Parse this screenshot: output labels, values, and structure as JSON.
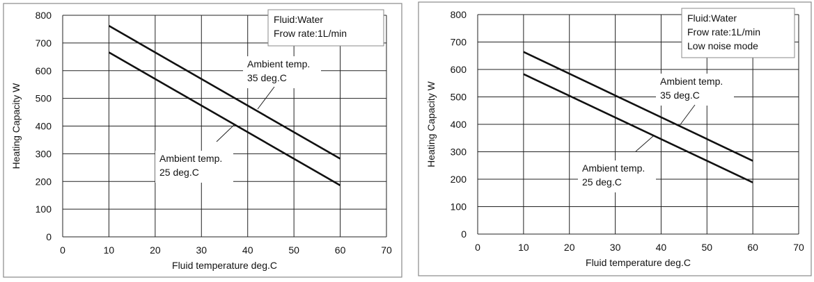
{
  "chart_data": [
    {
      "type": "line",
      "xlabel": "Fluid temperature deg.C",
      "ylabel": "Heating Capacity W",
      "xlim": [
        0,
        70
      ],
      "ylim": [
        0,
        800
      ],
      "xticks": [
        "0",
        "10",
        "20",
        "30",
        "40",
        "50",
        "60",
        "70"
      ],
      "yticks": [
        "0",
        "100",
        "200",
        "300",
        "400",
        "500",
        "600",
        "700",
        "800"
      ],
      "grid": true,
      "info_box": [
        "Fluid:Water",
        "Frow rate:1L/min"
      ],
      "series": [
        {
          "name": "Ambient temp. 35 deg.C",
          "label_lines": [
            "Ambient temp.",
            "35 deg.C"
          ],
          "x": [
            10,
            60
          ],
          "y": [
            762,
            282
          ]
        },
        {
          "name": "Ambient temp. 25 deg.C",
          "label_lines": [
            "Ambient temp.",
            "25 deg.C"
          ],
          "x": [
            10,
            60
          ],
          "y": [
            666,
            186
          ]
        }
      ],
      "color": "#111111"
    },
    {
      "type": "line",
      "xlabel": "Fluid temperature deg.C",
      "ylabel": "Heating Capacity W",
      "xlim": [
        0,
        70
      ],
      "ylim": [
        0,
        800
      ],
      "xticks": [
        "0",
        "10",
        "20",
        "30",
        "40",
        "50",
        "60",
        "70"
      ],
      "yticks": [
        "0",
        "100",
        "200",
        "300",
        "400",
        "500",
        "600",
        "700",
        "800"
      ],
      "grid": true,
      "info_box": [
        "Fluid:Water",
        "Frow rate:1L/min",
        "Low noise mode"
      ],
      "series": [
        {
          "name": "Ambient temp. 35 deg.C",
          "label_lines": [
            "Ambient temp.",
            "35 deg.C"
          ],
          "x": [
            10,
            60
          ],
          "y": [
            664,
            267
          ]
        },
        {
          "name": "Ambient temp. 25 deg.C",
          "label_lines": [
            "Ambient temp.",
            "25 deg.C"
          ],
          "x": [
            10,
            60
          ],
          "y": [
            583,
            188
          ]
        }
      ],
      "color": "#111111"
    }
  ]
}
